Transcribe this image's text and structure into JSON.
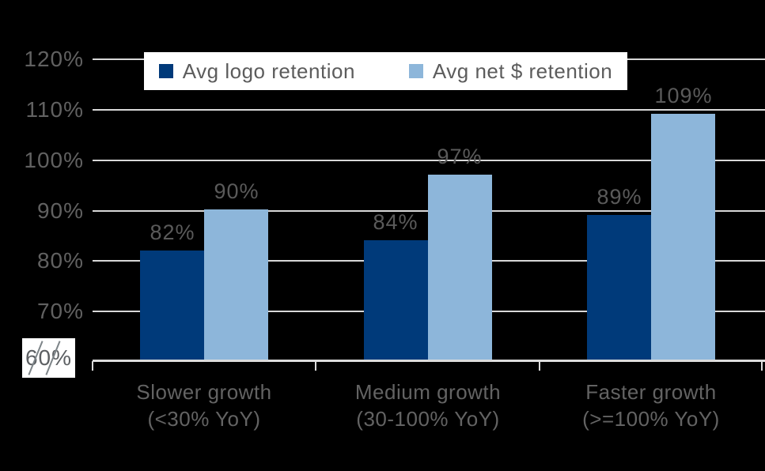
{
  "colors": {
    "background": "#000000",
    "gridline": "#D8D8D8",
    "axis_line": "#DCDCDC",
    "text_gray": "#616161",
    "legend_background": "#FFFFFF",
    "series_dark_blue": "#003A7A",
    "series_light_blue": "#8DB6DA"
  },
  "legend": {
    "items": [
      {
        "label": "Avg logo retention",
        "color": "#003A7A"
      },
      {
        "label": "Avg net $ retention",
        "color": "#8DB6DA"
      }
    ]
  },
  "chart_data": {
    "type": "bar",
    "title": "",
    "xlabel": "",
    "ylabel": "",
    "categories": [
      "Slower growth (<30% YoY)",
      "Medium growth (30-100% YoY)",
      "Faster growth (>=100% YoY)"
    ],
    "category_lines": [
      [
        "Slower growth",
        "(<30% YoY)"
      ],
      [
        "Medium growth",
        "(30-100% YoY)"
      ],
      [
        "Faster growth",
        "(>=100% YoY)"
      ]
    ],
    "series": [
      {
        "name": "Avg logo retention",
        "color": "#003A7A",
        "values": [
          82,
          84,
          89
        ],
        "labels": [
          "82%",
          "84%",
          "89%"
        ]
      },
      {
        "name": "Avg net $ retention",
        "color": "#8DB6DA",
        "values": [
          90,
          97,
          109
        ],
        "labels": [
          "90%",
          "97%",
          "109%"
        ]
      }
    ],
    "ylim": [
      60,
      120
    ],
    "ytick_interval": 10,
    "ytick_labels": [
      "120%",
      "110%",
      "100%",
      "90%",
      "80%",
      "70%",
      "60%"
    ],
    "axis_break_label": "60%",
    "grid": true,
    "legend_position": "top-center",
    "note": "y-axis broken at 60% (break marks over bottom label)"
  }
}
